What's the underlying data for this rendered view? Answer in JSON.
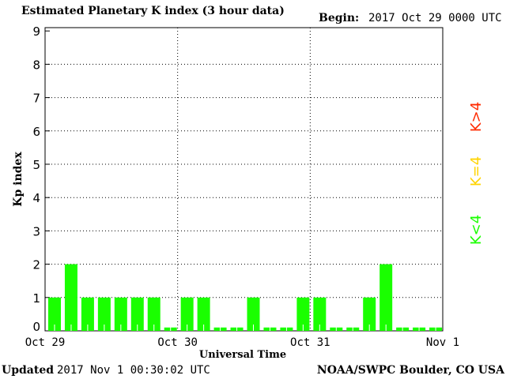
{
  "header": {
    "title": "Estimated Planetary K index (3 hour data)",
    "begin_label": "Begin:",
    "begin_value": "2017 Oct 29 0000 UTC"
  },
  "footer": {
    "updated_label": "Updated",
    "updated_value": "2017 Nov  1 00:30:02 UTC",
    "source": "NOAA/SWPC Boulder, CO USA"
  },
  "legend": [
    {
      "label": "K>4",
      "color": "#ff2a00"
    },
    {
      "label": "K=4",
      "color": "#ffd400"
    },
    {
      "label": "K<4",
      "color": "#1aff00"
    }
  ],
  "chart_data": {
    "type": "bar",
    "title": "Estimated Planetary K index (3 hour data)",
    "xlabel": "Universal Time",
    "ylabel": "Kp index",
    "ylim": [
      0,
      9
    ],
    "yticks": [
      "0",
      "1",
      "2",
      "3",
      "4",
      "5",
      "6",
      "7",
      "8",
      "9"
    ],
    "xticks": [
      "Oct 29",
      "Oct 30",
      "Oct 31",
      "Nov 1"
    ],
    "grid": true,
    "bar_color": "#1aff00",
    "values": [
      1,
      2,
      1,
      1,
      1,
      1,
      1,
      0,
      1,
      1,
      0,
      0,
      1,
      0,
      0,
      1,
      1,
      0,
      0,
      1,
      2,
      0,
      0,
      0
    ]
  }
}
